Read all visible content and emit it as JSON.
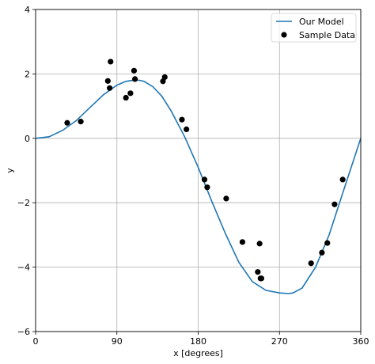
{
  "chart_data": {
    "type": "scatter",
    "xlabel": "x [degrees]",
    "ylabel": "y",
    "xlim": [
      0,
      360
    ],
    "ylim": [
      -6,
      4
    ],
    "x_ticks": [
      0,
      90,
      180,
      270,
      360
    ],
    "y_ticks": [
      -6,
      -4,
      -2,
      0,
      2,
      4
    ],
    "x_tick_labels": [
      "0",
      "90",
      "180",
      "270",
      "360"
    ],
    "y_tick_labels": [
      "−6",
      "−4",
      "−2",
      "0",
      "2",
      "4"
    ],
    "grid": true,
    "legend_position": "top-right",
    "series": [
      {
        "name": "Our Model",
        "kind": "line",
        "color": "#1f77b4",
        "x": [
          0,
          15,
          30,
          45,
          60,
          75,
          90,
          100,
          110,
          115,
          120,
          130,
          140,
          150,
          165,
          180,
          195,
          210,
          225,
          240,
          255,
          270,
          280,
          285,
          295,
          310,
          325,
          340,
          350,
          360
        ],
        "y": [
          0.0,
          0.05,
          0.25,
          0.55,
          0.95,
          1.35,
          1.65,
          1.77,
          1.81,
          1.8,
          1.77,
          1.6,
          1.3,
          0.85,
          0.05,
          -0.9,
          -1.95,
          -2.95,
          -3.85,
          -4.45,
          -4.72,
          -4.8,
          -4.82,
          -4.8,
          -4.65,
          -4.0,
          -3.0,
          -1.7,
          -0.85,
          0.0
        ]
      },
      {
        "name": "Sample Data",
        "kind": "scatter",
        "color": "#000000",
        "x": [
          35,
          50,
          80,
          82,
          83,
          100,
          105,
          109,
          110,
          141,
          143,
          162,
          167,
          187,
          190,
          211,
          229,
          246,
          248,
          249,
          250,
          305,
          317,
          323,
          331,
          340
        ],
        "y": [
          0.48,
          0.52,
          1.78,
          1.56,
          2.38,
          1.26,
          1.4,
          2.1,
          1.84,
          1.77,
          1.9,
          0.58,
          0.28,
          -1.28,
          -1.52,
          -1.87,
          -3.22,
          -4.15,
          -3.27,
          -4.35,
          -4.35,
          -3.88,
          -3.55,
          -3.25,
          -2.05,
          -1.28
        ]
      }
    ]
  }
}
